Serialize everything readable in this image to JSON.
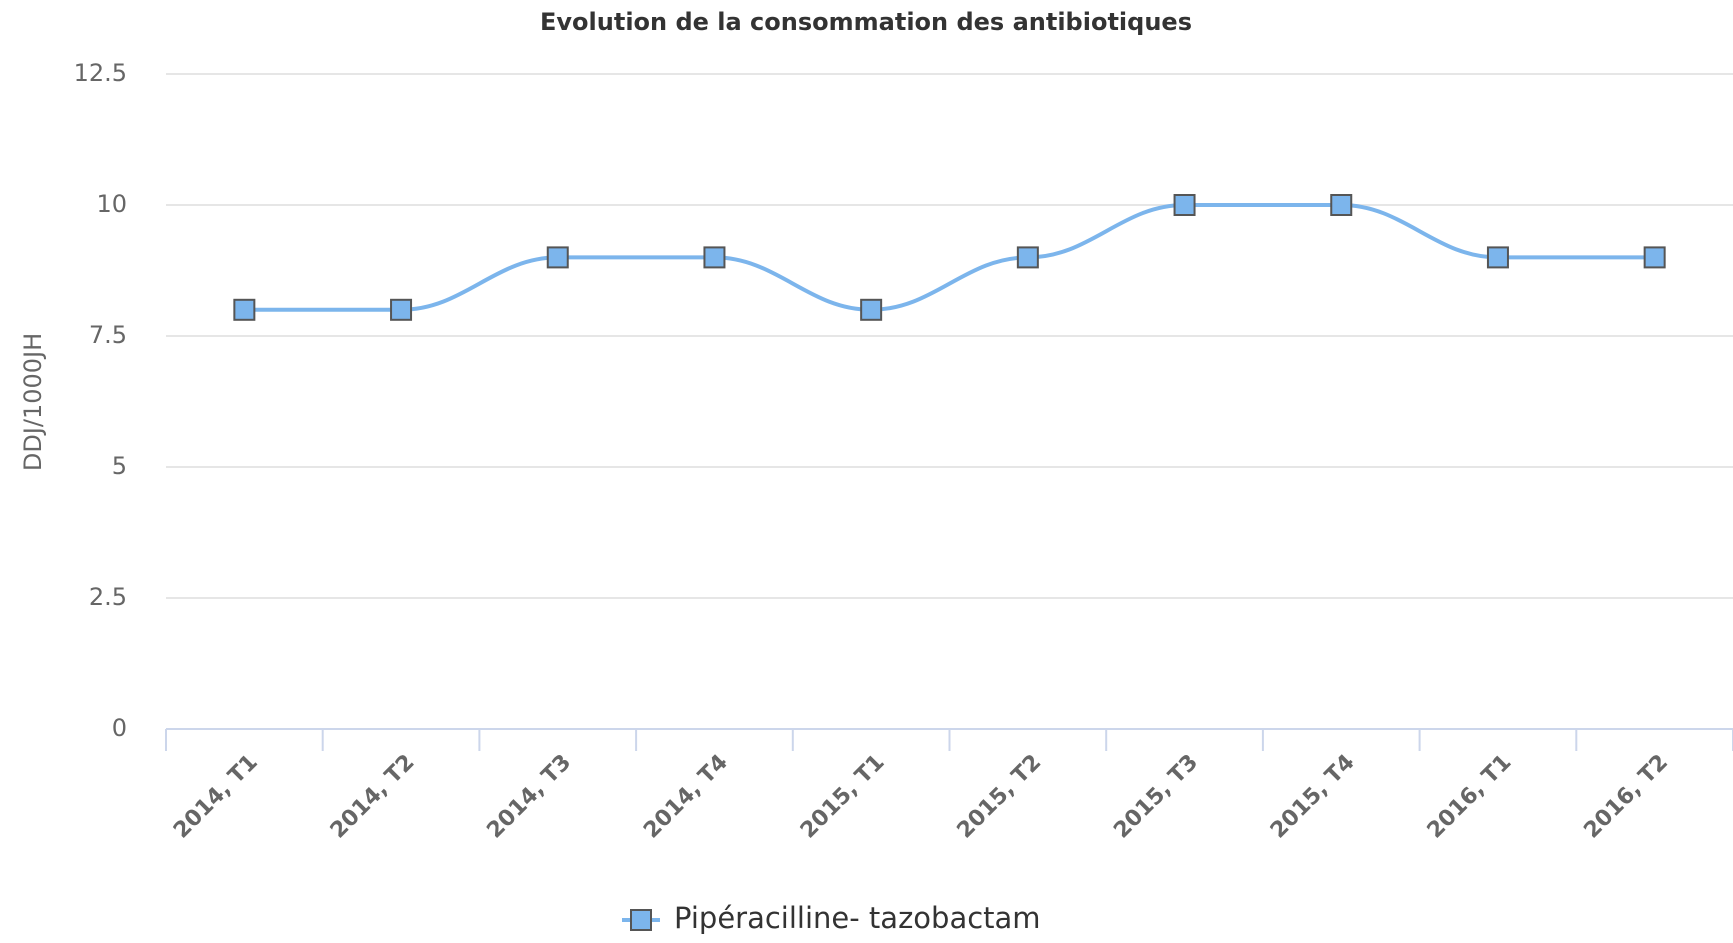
{
  "chart_data": {
    "type": "line",
    "title": "Evolution de la consommation des antibiotiques",
    "y_label": "DDJ/1000JH",
    "categories": [
      "2014, T1",
      "2014, T2",
      "2014, T3",
      "2014, T4",
      "2015, T1",
      "2015, T2",
      "2015, T3",
      "2015, T4",
      "2016, T1",
      "2016, T2"
    ],
    "series": [
      {
        "name": "Pipéracilline- tazobactam",
        "color": "#7cb5ec",
        "values": [
          8,
          8,
          9,
          9,
          8,
          9,
          10,
          10,
          9,
          9
        ]
      }
    ],
    "ylim": [
      0,
      12.5
    ],
    "yticks": [
      0,
      2.5,
      5,
      7.5,
      10,
      12.5
    ],
    "grid": true,
    "legend": "bottom"
  }
}
